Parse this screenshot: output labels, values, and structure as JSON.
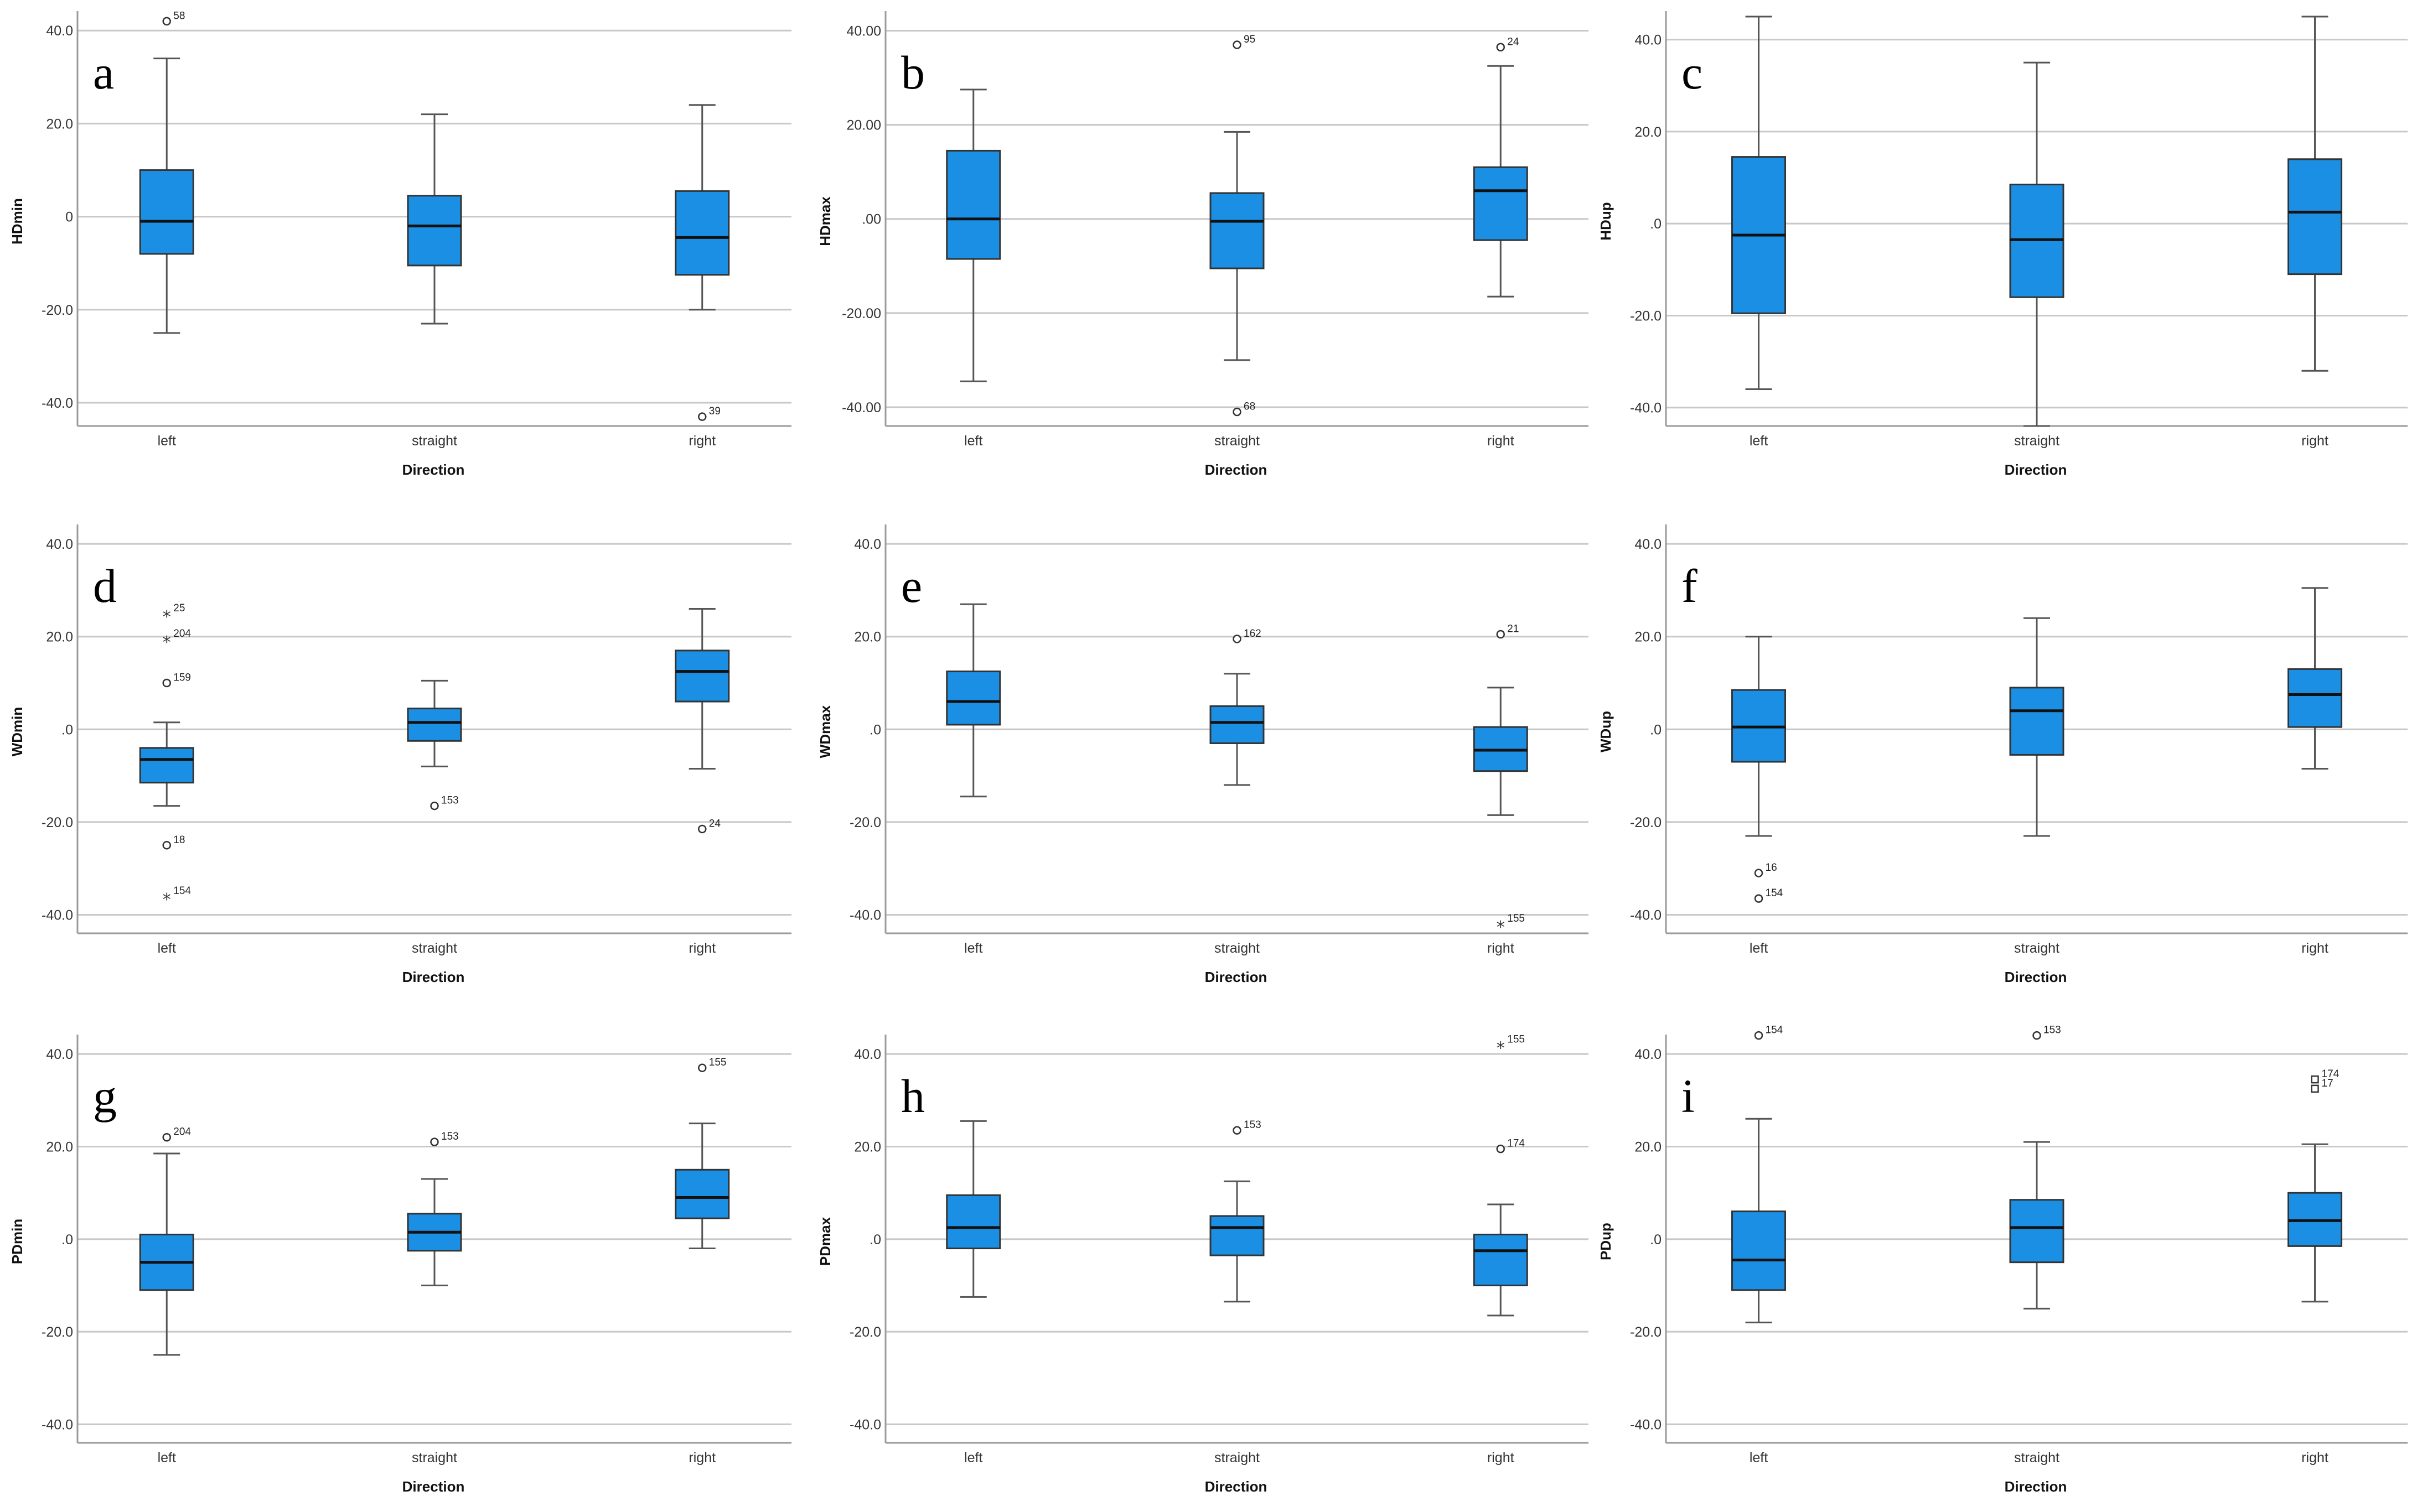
{
  "figure": {
    "xlabel": "Direction",
    "categories": [
      "left",
      "straight",
      "right"
    ]
  },
  "chart_data": [
    {
      "type": "box",
      "letter": "a",
      "ylabel": "HDmin",
      "ylim": [
        -45,
        43
      ],
      "ticks": [
        40,
        20,
        0,
        -20,
        -40
      ],
      "tick_labels": [
        "40.0",
        "20.0",
        "0",
        "-20.0",
        "-40.0"
      ],
      "boxes": [
        {
          "category": "left",
          "whisker_low": -25,
          "q1": -8,
          "median": -1,
          "q3": 10,
          "whisker_high": 34
        },
        {
          "category": "straight",
          "whisker_low": -23,
          "q1": -10.5,
          "median": -2,
          "q3": 4.5,
          "whisker_high": 22
        },
        {
          "category": "right",
          "whisker_low": -20,
          "q1": -12.5,
          "median": -4.5,
          "q3": 5.5,
          "whisker_high": 24
        }
      ],
      "outliers": [
        {
          "category": "left",
          "value": 42,
          "label": "58",
          "marker": "circle"
        },
        {
          "category": "right",
          "value": -43,
          "label": "39",
          "marker": "circle"
        }
      ]
    },
    {
      "type": "box",
      "letter": "b",
      "ylabel": "HDmax",
      "ylim": [
        -44,
        43
      ],
      "ticks": [
        40,
        20,
        0,
        -20,
        -40
      ],
      "tick_labels": [
        "40.00",
        "20.00",
        ".00",
        "-20.00",
        "-40.00"
      ],
      "boxes": [
        {
          "category": "left",
          "whisker_low": -34.5,
          "q1": -8.5,
          "median": 0,
          "q3": 14.5,
          "whisker_high": 27.5
        },
        {
          "category": "straight",
          "whisker_low": -30,
          "q1": -10.5,
          "median": -0.5,
          "q3": 5.5,
          "whisker_high": 18.5
        },
        {
          "category": "right",
          "whisker_low": -16.5,
          "q1": -4.5,
          "median": 6,
          "q3": 11,
          "whisker_high": 32.5
        }
      ],
      "outliers": [
        {
          "category": "straight",
          "value": 37,
          "label": "95",
          "marker": "circle"
        },
        {
          "category": "right",
          "value": 36.5,
          "label": "24",
          "marker": "circle"
        },
        {
          "category": "straight",
          "value": -41,
          "label": "68",
          "marker": "circle"
        }
      ]
    },
    {
      "type": "box",
      "letter": "c",
      "ylabel": "HDup",
      "ylim": [
        -44,
        45
      ],
      "ticks": [
        40,
        20,
        0,
        -20,
        -40
      ],
      "tick_labels": [
        "40.0",
        "20.0",
        ".0",
        "-20.0",
        "-40.0"
      ],
      "boxes": [
        {
          "category": "left",
          "whisker_low": -36,
          "q1": -19.5,
          "median": -2.5,
          "q3": 14.5,
          "whisker_high": 45
        },
        {
          "category": "straight",
          "whisker_low": -44,
          "q1": -16,
          "median": -3.5,
          "q3": 8.5,
          "whisker_high": 35
        },
        {
          "category": "right",
          "whisker_low": -32,
          "q1": -11,
          "median": 2.5,
          "q3": 14,
          "whisker_high": 45
        }
      ],
      "outliers": []
    },
    {
      "type": "box",
      "letter": "d",
      "ylabel": "WDmin",
      "ylim": [
        -44,
        43
      ],
      "ticks": [
        40,
        20,
        0,
        -20,
        -40
      ],
      "tick_labels": [
        "40.0",
        "20.0",
        ".0",
        "-20.0",
        "-40.0"
      ],
      "boxes": [
        {
          "category": "left",
          "whisker_low": -16.5,
          "q1": -11.5,
          "median": -6.5,
          "q3": -4,
          "whisker_high": 1.5
        },
        {
          "category": "straight",
          "whisker_low": -8,
          "q1": -2.5,
          "median": 1.5,
          "q3": 4.5,
          "whisker_high": 10.5
        },
        {
          "category": "right",
          "whisker_low": -8.5,
          "q1": 6,
          "median": 12.5,
          "q3": 17,
          "whisker_high": 26
        }
      ],
      "outliers": [
        {
          "category": "left",
          "value": 25,
          "label": "25",
          "marker": "star"
        },
        {
          "category": "left",
          "value": 19.5,
          "label": "204",
          "marker": "star"
        },
        {
          "category": "left",
          "value": 10,
          "label": "159",
          "marker": "circle"
        },
        {
          "category": "left",
          "value": -25,
          "label": "18",
          "marker": "circle"
        },
        {
          "category": "left",
          "value": -36,
          "label": "154",
          "marker": "star"
        },
        {
          "category": "straight",
          "value": -16.5,
          "label": "153",
          "marker": "circle"
        },
        {
          "category": "right",
          "value": -21.5,
          "label": "24",
          "marker": "circle"
        }
      ]
    },
    {
      "type": "box",
      "letter": "e",
      "ylabel": "WDmax",
      "ylim": [
        -44,
        43
      ],
      "ticks": [
        40,
        20,
        0,
        -20,
        -40
      ],
      "tick_labels": [
        "40.0",
        "20.0",
        ".0",
        "-20.0",
        "-40.0"
      ],
      "boxes": [
        {
          "category": "left",
          "whisker_low": -14.5,
          "q1": 1,
          "median": 6,
          "q3": 12.5,
          "whisker_high": 27
        },
        {
          "category": "straight",
          "whisker_low": -12,
          "q1": -3,
          "median": 1.5,
          "q3": 5,
          "whisker_high": 12
        },
        {
          "category": "right",
          "whisker_low": -18.5,
          "q1": -9,
          "median": -4.5,
          "q3": 0.5,
          "whisker_high": 9
        }
      ],
      "outliers": [
        {
          "category": "straight",
          "value": 19.5,
          "label": "162",
          "marker": "circle"
        },
        {
          "category": "right",
          "value": 20.5,
          "label": "21",
          "marker": "circle"
        },
        {
          "category": "right",
          "value": -42,
          "label": "155",
          "marker": "star"
        }
      ]
    },
    {
      "type": "box",
      "letter": "f",
      "ylabel": "WDup",
      "ylim": [
        -44,
        43
      ],
      "ticks": [
        40,
        20,
        0,
        -20,
        -40
      ],
      "tick_labels": [
        "40.0",
        "20.0",
        ".0",
        "-20.0",
        "-40.0"
      ],
      "boxes": [
        {
          "category": "left",
          "whisker_low": -23,
          "q1": -7,
          "median": 0.5,
          "q3": 8.5,
          "whisker_high": 20
        },
        {
          "category": "straight",
          "whisker_low": -23,
          "q1": -5.5,
          "median": 4,
          "q3": 9,
          "whisker_high": 24
        },
        {
          "category": "right",
          "whisker_low": -8.5,
          "q1": 0.5,
          "median": 7.5,
          "q3": 13,
          "whisker_high": 30.5
        }
      ],
      "outliers": [
        {
          "category": "left",
          "value": -31,
          "label": "16",
          "marker": "circle"
        },
        {
          "category": "left",
          "value": -36.5,
          "label": "154",
          "marker": "circle"
        }
      ]
    },
    {
      "type": "box",
      "letter": "g",
      "ylabel": "PDmin",
      "ylim": [
        -44,
        43
      ],
      "ticks": [
        40,
        20,
        0,
        -20,
        -40
      ],
      "tick_labels": [
        "40.0",
        "20.0",
        ".0",
        "-20.0",
        "-40.0"
      ],
      "boxes": [
        {
          "category": "left",
          "whisker_low": -25,
          "q1": -11,
          "median": -5,
          "q3": 1,
          "whisker_high": 18.5
        },
        {
          "category": "straight",
          "whisker_low": -10,
          "q1": -2.5,
          "median": 1.5,
          "q3": 5.5,
          "whisker_high": 13
        },
        {
          "category": "right",
          "whisker_low": -2,
          "q1": 4.5,
          "median": 9,
          "q3": 15,
          "whisker_high": 25
        }
      ],
      "outliers": [
        {
          "category": "left",
          "value": 22,
          "label": "204",
          "marker": "circle"
        },
        {
          "category": "straight",
          "value": 21,
          "label": "153",
          "marker": "circle"
        },
        {
          "category": "right",
          "value": 37,
          "label": "155",
          "marker": "circle"
        }
      ]
    },
    {
      "type": "box",
      "letter": "h",
      "ylabel": "PDmax",
      "ylim": [
        -44,
        43
      ],
      "ticks": [
        40,
        20,
        0,
        -20,
        -40
      ],
      "tick_labels": [
        "40.0",
        "20.0",
        ".0",
        "-20.0",
        "-40.0"
      ],
      "boxes": [
        {
          "category": "left",
          "whisker_low": -12.5,
          "q1": -2,
          "median": 2.5,
          "q3": 9.5,
          "whisker_high": 25.5
        },
        {
          "category": "straight",
          "whisker_low": -13.5,
          "q1": -3.5,
          "median": 2.5,
          "q3": 5,
          "whisker_high": 12.5
        },
        {
          "category": "right",
          "whisker_low": -16.5,
          "q1": -10,
          "median": -2.5,
          "q3": 1,
          "whisker_high": 7.5
        }
      ],
      "outliers": [
        {
          "category": "straight",
          "value": 23.5,
          "label": "153",
          "marker": "circle"
        },
        {
          "category": "right",
          "value": 19.5,
          "label": "174",
          "marker": "circle"
        },
        {
          "category": "right",
          "value": 42,
          "label": "155",
          "marker": "star"
        }
      ]
    },
    {
      "type": "box",
      "letter": "i",
      "ylabel": "PDup",
      "ylim": [
        -44,
        43
      ],
      "ticks": [
        40,
        20,
        0,
        -20,
        -40
      ],
      "tick_labels": [
        "40.0",
        "20.0",
        ".0",
        "-20.0",
        "-40.0"
      ],
      "boxes": [
        {
          "category": "left",
          "whisker_low": -18,
          "q1": -11,
          "median": -4.5,
          "q3": 6,
          "whisker_high": 26
        },
        {
          "category": "straight",
          "whisker_low": -15,
          "q1": -5,
          "median": 2.5,
          "q3": 8.5,
          "whisker_high": 21
        },
        {
          "category": "right",
          "whisker_low": -13.5,
          "q1": -1.5,
          "median": 4,
          "q3": 10,
          "whisker_high": 20.5
        }
      ],
      "outliers": [
        {
          "category": "left",
          "value": 44,
          "label": "154",
          "marker": "circle"
        },
        {
          "category": "straight",
          "value": 44,
          "label": "153",
          "marker": "circle"
        },
        {
          "category": "right",
          "value": 34.5,
          "label": "174",
          "marker": "square"
        },
        {
          "category": "right",
          "value": 32.5,
          "label": "17",
          "marker": "square"
        }
      ]
    }
  ]
}
